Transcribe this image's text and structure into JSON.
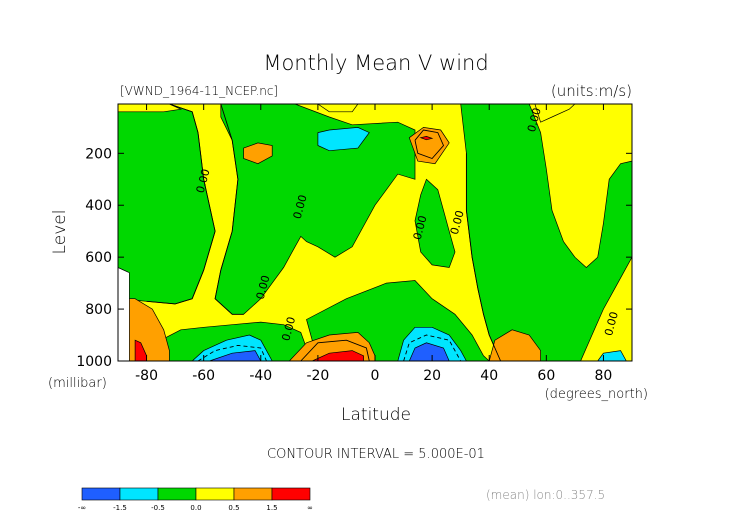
{
  "chart_data": {
    "type": "contour",
    "title": "Monthly Mean V wind",
    "dataset_label": "[VWND_1964-11_NCEP.nc]",
    "units_label": "(units:m/s)",
    "xlabel": "Latitude",
    "x_units": "(degrees_north)",
    "ylabel": "Level",
    "y_units": "(millibar)",
    "xlim": [
      -90,
      90
    ],
    "ylim": [
      1000,
      10
    ],
    "x_ticks": [
      -80,
      -60,
      -40,
      -20,
      0,
      20,
      40,
      60,
      80
    ],
    "y_ticks": [
      200,
      400,
      600,
      800,
      1000
    ],
    "contour_interval_text": "CONTOUR INTERVAL = 5.000E-01",
    "footer_note": "(mean) lon:0..357.5",
    "contour_labels": [
      {
        "text": "0.00",
        "lat": 57,
        "level": 75
      },
      {
        "text": "0.00",
        "lat": -59,
        "level": 310
      },
      {
        "text": "0.00",
        "lat": -25,
        "level": 410
      },
      {
        "text": "0.00",
        "lat": 17,
        "level": 490
      },
      {
        "text": "0.00",
        "lat": 30,
        "level": 470
      },
      {
        "text": "0.00",
        "lat": -38,
        "level": 720
      },
      {
        "text": "0.00",
        "lat": -29,
        "level": 880
      },
      {
        "text": "0.00",
        "lat": 84,
        "level": 860
      }
    ],
    "colorbar": {
      "colors": [
        "#1f5fff",
        "#00e5ff",
        "#00d800",
        "#ffff00",
        "#ffa000",
        "#ff0000"
      ],
      "labels": [
        "-∞",
        "-1.5",
        "-0.5",
        "0.0",
        "0.5",
        "1.5",
        "∞"
      ]
    },
    "regions": [
      {
        "name": "green-sh-upper",
        "color": "#00d800",
        "points": [
          [
            -90,
            10
          ],
          [
            -72,
            10
          ],
          [
            -64,
            40
          ],
          [
            -62,
            120
          ],
          [
            -60,
            300
          ],
          [
            -56,
            500
          ],
          [
            -60,
            650
          ],
          [
            -64,
            760
          ],
          [
            -70,
            780
          ],
          [
            -80,
            770
          ],
          [
            -90,
            760
          ]
        ]
      },
      {
        "name": "green-sh-lower",
        "color": "#00d800",
        "points": [
          [
            -72,
            1000
          ],
          [
            -75,
            920
          ],
          [
            -68,
            880
          ],
          [
            -60,
            870
          ],
          [
            -50,
            860
          ],
          [
            -40,
            850
          ],
          [
            -32,
            860
          ],
          [
            -26,
            890
          ],
          [
            -24,
            950
          ],
          [
            -24,
            1000
          ]
        ]
      },
      {
        "name": "green-central-upper",
        "color": "#00d800",
        "points": [
          [
            -54,
            10
          ],
          [
            -28,
            10
          ],
          [
            -16,
            60
          ],
          [
            -8,
            90
          ],
          [
            8,
            80
          ],
          [
            14,
            110
          ],
          [
            14,
            300
          ],
          [
            8,
            280
          ],
          [
            4,
            340
          ],
          [
            0,
            400
          ],
          [
            -4,
            480
          ],
          [
            -8,
            560
          ],
          [
            -14,
            600
          ],
          [
            -20,
            560
          ],
          [
            -24,
            540
          ],
          [
            -26,
            520
          ],
          [
            -28,
            560
          ],
          [
            -32,
            640
          ],
          [
            -36,
            700
          ],
          [
            -40,
            760
          ],
          [
            -46,
            820
          ],
          [
            -50,
            820
          ],
          [
            -56,
            760
          ],
          [
            -54,
            650
          ],
          [
            -50,
            500
          ],
          [
            -48,
            300
          ],
          [
            -50,
            150
          ],
          [
            -54,
            60
          ]
        ]
      },
      {
        "name": "green-central-low",
        "color": "#00d800",
        "points": [
          [
            -24,
            840
          ],
          [
            -10,
            760
          ],
          [
            4,
            700
          ],
          [
            14,
            690
          ],
          [
            20,
            760
          ],
          [
            28,
            820
          ],
          [
            34,
            900
          ],
          [
            38,
            980
          ],
          [
            40,
            1000
          ],
          [
            -18,
            1000
          ],
          [
            -22,
            920
          ]
        ]
      },
      {
        "name": "green-nh",
        "color": "#00d800",
        "points": [
          [
            30,
            10
          ],
          [
            54,
            10
          ],
          [
            58,
            120
          ],
          [
            60,
            260
          ],
          [
            62,
            420
          ],
          [
            66,
            540
          ],
          [
            70,
            600
          ],
          [
            74,
            640
          ],
          [
            78,
            600
          ],
          [
            80,
            470
          ],
          [
            82,
            300
          ],
          [
            86,
            240
          ],
          [
            90,
            230
          ],
          [
            90,
            600
          ],
          [
            86,
            680
          ],
          [
            84,
            720
          ],
          [
            80,
            800
          ],
          [
            76,
            900
          ],
          [
            72,
            1000
          ],
          [
            44,
            1000
          ],
          [
            40,
            900
          ],
          [
            38,
            820
          ],
          [
            36,
            720
          ],
          [
            34,
            600
          ],
          [
            32,
            420
          ],
          [
            32,
            200
          ]
        ]
      },
      {
        "name": "green-nh-mid",
        "color": "#00d800",
        "points": [
          [
            18,
            300
          ],
          [
            22,
            340
          ],
          [
            24,
            420
          ],
          [
            26,
            500
          ],
          [
            28,
            580
          ],
          [
            26,
            640
          ],
          [
            20,
            630
          ],
          [
            16,
            580
          ],
          [
            14,
            460
          ],
          [
            16,
            360
          ]
        ]
      },
      {
        "name": "yellow-top-strip",
        "color": "#ffff00",
        "points": [
          [
            -90,
            10
          ],
          [
            -72,
            10
          ],
          [
            -68,
            30
          ],
          [
            -74,
            40
          ],
          [
            -90,
            40
          ]
        ]
      },
      {
        "name": "yellow-strip-mid-top",
        "color": "#ffff00",
        "points": [
          [
            -20,
            10
          ],
          [
            -6,
            10
          ],
          [
            -8,
            40
          ],
          [
            -16,
            40
          ]
        ]
      },
      {
        "name": "yellow-nh-strip",
        "color": "#ffff00",
        "points": [
          [
            56,
            10
          ],
          [
            70,
            10
          ],
          [
            68,
            30
          ],
          [
            62,
            60
          ],
          [
            58,
            80
          ]
        ]
      },
      {
        "name": "orange-sh-pocket",
        "color": "#ffa000",
        "points": [
          [
            -46,
            180
          ],
          [
            -41,
            160
          ],
          [
            -36,
            170
          ],
          [
            -36,
            210
          ],
          [
            -41,
            240
          ],
          [
            -46,
            220
          ]
        ]
      },
      {
        "name": "orange-upper-center",
        "color": "#ffa000",
        "points": [
          [
            12,
            140
          ],
          [
            17,
            100
          ],
          [
            23,
            110
          ],
          [
            26,
            160
          ],
          [
            21,
            240
          ],
          [
            15,
            230
          ]
        ]
      },
      {
        "name": "red-upper-center-dash",
        "color": "#ff0000",
        "points": [
          [
            16,
            140
          ],
          [
            18,
            135
          ],
          [
            20,
            142
          ],
          [
            18,
            148
          ]
        ]
      },
      {
        "name": "cyan-upper",
        "color": "#00e5ff",
        "points": [
          [
            -20,
            120
          ],
          [
            -16,
            110
          ],
          [
            -6,
            100
          ],
          [
            -2,
            120
          ],
          [
            -6,
            180
          ],
          [
            -16,
            190
          ],
          [
            -20,
            170
          ]
        ]
      },
      {
        "name": "orange-sh-low",
        "color": "#ffa000",
        "points": [
          [
            -90,
            760
          ],
          [
            -84,
            760
          ],
          [
            -78,
            800
          ],
          [
            -74,
            880
          ],
          [
            -72,
            960
          ],
          [
            -72,
            1000
          ],
          [
            -90,
            1000
          ]
        ]
      },
      {
        "name": "red-sh-low",
        "color": "#ff0000",
        "points": [
          [
            -84,
            920
          ],
          [
            -82,
            930
          ],
          [
            -80,
            980
          ],
          [
            -80,
            1000
          ],
          [
            -84,
            1000
          ]
        ]
      },
      {
        "name": "white-sh-corner",
        "color": "#ffffff",
        "points": [
          [
            -90,
            640
          ],
          [
            -86,
            660
          ],
          [
            -86,
            1000
          ],
          [
            -90,
            1000
          ]
        ]
      },
      {
        "name": "cyan-sh-low",
        "color": "#00e5ff",
        "points": [
          [
            -64,
            1000
          ],
          [
            -60,
            960
          ],
          [
            -52,
            920
          ],
          [
            -44,
            900
          ],
          [
            -40,
            920
          ],
          [
            -38,
            960
          ],
          [
            -36,
            1000
          ]
        ]
      },
      {
        "name": "blue-sh-low",
        "color": "#1f5fff",
        "points": [
          [
            -58,
            1000
          ],
          [
            -50,
            970
          ],
          [
            -42,
            960
          ],
          [
            -40,
            1000
          ]
        ]
      },
      {
        "name": "orange-mid-low",
        "color": "#ffa000",
        "points": [
          [
            -30,
            1000
          ],
          [
            -24,
            930
          ],
          [
            -16,
            900
          ],
          [
            -6,
            890
          ],
          [
            -2,
            930
          ],
          [
            0,
            980
          ],
          [
            0,
            1000
          ]
        ]
      },
      {
        "name": "red-mid-low",
        "color": "#ff0000",
        "points": [
          [
            -22,
            1000
          ],
          [
            -16,
            970
          ],
          [
            -8,
            960
          ],
          [
            -4,
            980
          ],
          [
            -4,
            1000
          ]
        ]
      },
      {
        "name": "cyan-nh-low",
        "color": "#00e5ff",
        "points": [
          [
            8,
            1000
          ],
          [
            10,
            920
          ],
          [
            14,
            870
          ],
          [
            20,
            870
          ],
          [
            26,
            900
          ],
          [
            30,
            960
          ],
          [
            32,
            1000
          ]
        ]
      },
      {
        "name": "blue-nh-low",
        "color": "#1f5fff",
        "points": [
          [
            12,
            1000
          ],
          [
            14,
            950
          ],
          [
            18,
            930
          ],
          [
            24,
            950
          ],
          [
            26,
            1000
          ]
        ]
      },
      {
        "name": "orange-nh-low",
        "color": "#ffa000",
        "points": [
          [
            40,
            1000
          ],
          [
            42,
            920
          ],
          [
            48,
            880
          ],
          [
            54,
            900
          ],
          [
            58,
            960
          ],
          [
            58,
            1000
          ]
        ]
      },
      {
        "name": "cyan-nh-right",
        "color": "#00e5ff",
        "points": [
          [
            78,
            1000
          ],
          [
            80,
            970
          ],
          [
            86,
            960
          ],
          [
            88,
            1000
          ]
        ]
      }
    ],
    "contours": [
      {
        "name": "zero-contour-sh",
        "dashed": false,
        "points": [
          [
            -72,
            10
          ],
          [
            -64,
            40
          ],
          [
            -62,
            120
          ],
          [
            -60,
            300
          ],
          [
            -56,
            500
          ],
          [
            -60,
            650
          ],
          [
            -64,
            760
          ],
          [
            -70,
            780
          ],
          [
            -80,
            770
          ]
        ]
      },
      {
        "name": "zero-contour-central",
        "dashed": false,
        "points": [
          [
            -54,
            10
          ],
          [
            -50,
            150
          ],
          [
            -48,
            300
          ],
          [
            -50,
            500
          ],
          [
            -54,
            650
          ],
          [
            -56,
            760
          ],
          [
            -50,
            820
          ],
          [
            -46,
            820
          ]
        ]
      },
      {
        "name": "zero-contour-nh",
        "dashed": false,
        "points": [
          [
            32,
            200
          ],
          [
            32,
            420
          ],
          [
            34,
            600
          ],
          [
            36,
            720
          ],
          [
            38,
            820
          ],
          [
            40,
            900
          ],
          [
            44,
            1000
          ]
        ]
      },
      {
        "name": "neg-contour-sh",
        "dashed": true,
        "points": [
          [
            -62,
            1000
          ],
          [
            -56,
            960
          ],
          [
            -48,
            940
          ],
          [
            -40,
            950
          ],
          [
            -38,
            1000
          ]
        ]
      },
      {
        "name": "neg-contour-nh",
        "dashed": true,
        "points": [
          [
            10,
            1000
          ],
          [
            12,
            930
          ],
          [
            18,
            900
          ],
          [
            26,
            920
          ],
          [
            30,
            1000
          ]
        ]
      },
      {
        "name": "pos-contour-upper",
        "dashed": false,
        "points": [
          [
            14,
            150
          ],
          [
            17,
            110
          ],
          [
            22,
            120
          ],
          [
            24,
            170
          ],
          [
            20,
            220
          ],
          [
            15,
            200
          ],
          [
            14,
            150
          ]
        ]
      },
      {
        "name": "pos-contour-low",
        "dashed": false,
        "points": [
          [
            -26,
            1000
          ],
          [
            -20,
            930
          ],
          [
            -10,
            920
          ],
          [
            -3,
            950
          ],
          [
            -2,
            1000
          ]
        ]
      }
    ]
  }
}
